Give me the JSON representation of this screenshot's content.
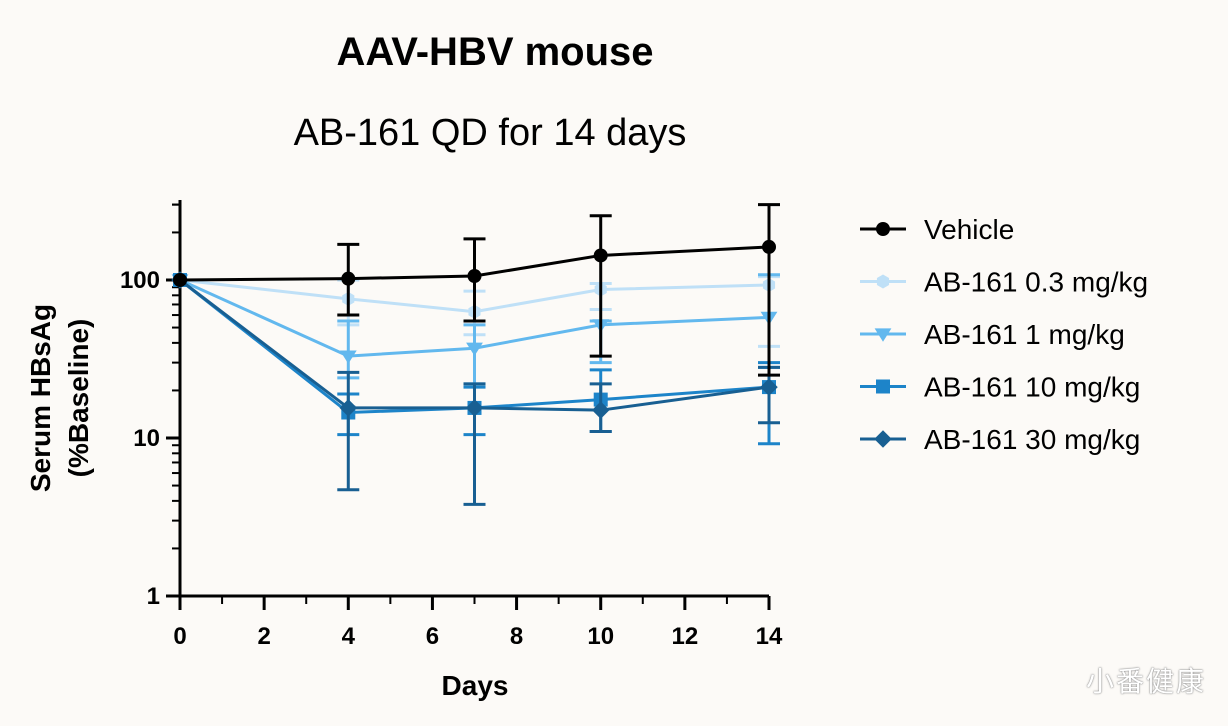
{
  "watermark": "小番健康",
  "chart_data": {
    "type": "line",
    "title": "AAV-HBV mouse",
    "subtitle": "AB-161 QD for 14 days",
    "xlabel": "Days",
    "ylabel": [
      "Serum HBsAg",
      "(%Baseline)"
    ],
    "xlim": [
      0,
      14
    ],
    "xticks": [
      0,
      2,
      4,
      6,
      8,
      10,
      12,
      14
    ],
    "ylim": [
      1,
      300
    ],
    "yscale": "log",
    "yticks": [
      1,
      10,
      100
    ],
    "grid": false,
    "legend": "right",
    "x": [
      0,
      4,
      7,
      10,
      14
    ],
    "series": [
      {
        "name": "Vehicle",
        "color": "#000000",
        "marker": "circle",
        "values": [
          100,
          102,
          106,
          143,
          162
        ],
        "err_low": [
          100,
          60,
          55,
          33,
          25
        ],
        "err_high": [
          100,
          168,
          182,
          255,
          300
        ]
      },
      {
        "name": "AB-161 0.3 mg/kg",
        "color": "#bfe0f7",
        "marker": "hexagon",
        "values": [
          100,
          76,
          63,
          87,
          93
        ],
        "err_low": [
          100,
          52,
          45,
          65,
          38
        ],
        "err_high": [
          100,
          100,
          85,
          95,
          105
        ]
      },
      {
        "name": "AB-161 1 mg/kg",
        "color": "#62b8ee",
        "marker": "triangle-down",
        "values": [
          100,
          33,
          37,
          52,
          58
        ],
        "err_low": [
          100,
          24,
          22,
          30,
          28
        ],
        "err_high": [
          100,
          55,
          52,
          55,
          108
        ]
      },
      {
        "name": "AB-161 10 mg/kg",
        "color": "#1d84c9",
        "marker": "square",
        "values": [
          100,
          14.5,
          15.5,
          17.5,
          21
        ],
        "err_low": [
          100,
          10.5,
          10.5,
          11,
          9.2
        ],
        "err_high": [
          100,
          19,
          21,
          27,
          30
        ]
      },
      {
        "name": "AB-161 30 mg/kg",
        "color": "#185f92",
        "marker": "diamond",
        "values": [
          100,
          15.5,
          15.5,
          15,
          21
        ],
        "err_low": [
          100,
          4.7,
          3.8,
          11,
          12.5
        ],
        "err_high": [
          100,
          26,
          22,
          22,
          28
        ]
      }
    ]
  }
}
